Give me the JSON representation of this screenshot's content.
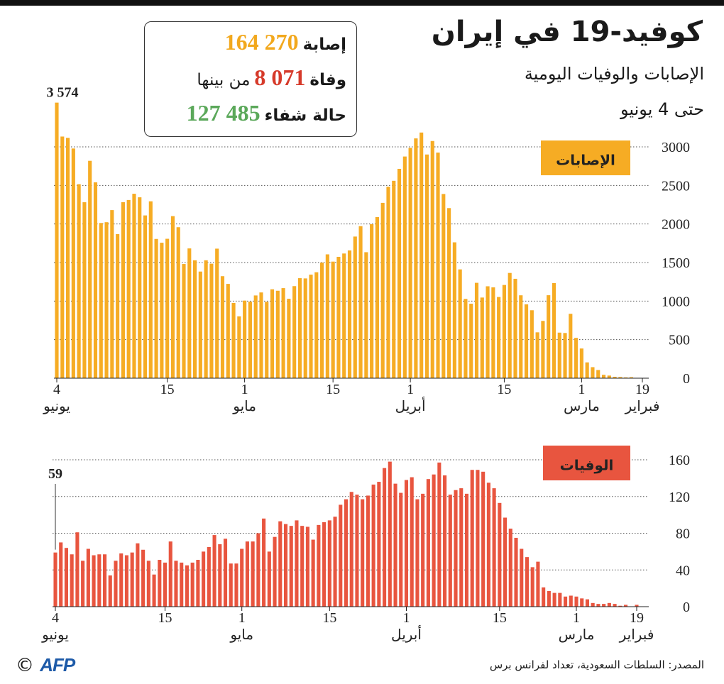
{
  "header": {
    "title": "كوفيد-19 في إيران",
    "subtitle": "الإصابات والوفيات اليومية",
    "date": "حتى 4 يونيو"
  },
  "stats": [
    {
      "label": "إصابة",
      "value": "164 270",
      "color": "#f2a81d"
    },
    {
      "label": "وفاة",
      "value": "8 071",
      "note": "من بينها",
      "color": "#d63a2a"
    },
    {
      "label": "حالة شفاء",
      "value": "127 485",
      "color": "#5ba85a"
    }
  ],
  "source": "المصدر: السلطات السعودية، تعداد لفرانس برس",
  "copyright": "©",
  "logo": "AFP",
  "chart_data": [
    {
      "type": "bar",
      "title": "الإصابات",
      "color": "#f6ac24",
      "grid": true,
      "ylim": [
        0,
        3600
      ],
      "yticks": [
        0,
        500,
        1000,
        1500,
        2000,
        2500,
        3000
      ],
      "categories": [
        "4\nيونيو",
        null,
        null,
        null,
        null,
        null,
        null,
        null,
        null,
        null,
        null,
        null,
        null,
        null,
        null,
        null,
        null,
        null,
        null,
        null,
        "15",
        null,
        null,
        null,
        null,
        null,
        null,
        null,
        null,
        null,
        null,
        null,
        null,
        null,
        "1\nمايو",
        null,
        null,
        null,
        null,
        null,
        null,
        null,
        null,
        null,
        null,
        null,
        null,
        null,
        null,
        null,
        "15",
        null,
        null,
        null,
        null,
        null,
        null,
        null,
        null,
        null,
        null,
        null,
        null,
        null,
        "1\nأبريل",
        null,
        null,
        null,
        null,
        null,
        null,
        null,
        null,
        null,
        null,
        null,
        null,
        null,
        null,
        null,
        null,
        "15",
        null,
        null,
        null,
        null,
        null,
        null,
        null,
        null,
        null,
        null,
        null,
        null,
        null,
        "1\nمارس",
        null,
        null,
        null,
        null,
        null,
        null,
        null,
        null,
        null,
        null,
        "19\nفبراير"
      ],
      "values": [
        3574,
        3134,
        3117,
        2979,
        2516,
        2282,
        2819,
        2540,
        2013,
        2023,
        2180,
        1869,
        2283,
        2311,
        2392,
        2346,
        2111,
        2294,
        1806,
        1757,
        1808,
        2102,
        1958,
        1481,
        1683,
        1529,
        1383,
        1529,
        1485,
        1680,
        1323,
        1223,
        976,
        802,
        1006,
        993,
        1073,
        1112,
        991,
        1153,
        1134,
        1168,
        1030,
        1194,
        1297,
        1294,
        1343,
        1374,
        1499,
        1606,
        1512,
        1574,
        1617,
        1657,
        1837,
        1972,
        1634,
        1997,
        2089,
        2274,
        2483,
        2560,
        2715,
        2875,
        2987,
        3110,
        3186,
        2901,
        3076,
        2926,
        2389,
        2206,
        1762,
        1411,
        1028,
        966,
        1237,
        1046,
        1192,
        1178,
        1053,
        1209,
        1365,
        1289,
        1075,
        958,
        881,
        595,
        743,
        1076,
        1234,
        591,
        586,
        835,
        523,
        385,
        205,
        143,
        106,
        44,
        34,
        18,
        15,
        10,
        13,
        3,
        2
      ],
      "value_labels": [
        "3 574",
        null,
        null,
        null,
        null,
        null,
        null,
        null,
        null,
        null,
        null,
        null,
        null,
        null,
        null,
        null,
        null,
        null,
        null,
        null,
        null,
        null,
        null,
        null,
        null,
        null,
        null,
        null,
        null,
        null,
        null,
        null,
        null,
        null,
        null,
        null,
        null,
        null,
        null,
        null,
        null,
        null,
        null,
        null,
        null,
        null,
        null,
        null,
        null,
        null,
        null,
        null,
        null,
        null,
        null,
        null,
        null,
        null,
        null,
        null,
        null,
        null,
        null,
        null,
        null,
        null,
        null,
        null,
        null,
        null,
        null,
        null,
        null,
        null,
        null,
        null,
        null,
        null,
        null,
        null,
        null,
        null,
        null,
        null,
        null,
        null,
        null,
        null,
        null,
        null,
        null,
        null,
        null,
        null,
        null,
        null,
        null,
        null,
        null,
        null,
        null,
        null,
        null,
        null,
        null,
        null,
        null
      ]
    },
    {
      "type": "bar",
      "title": "الوفيات",
      "color": "#e8553f",
      "grid": true,
      "ylim": [
        0,
        160
      ],
      "yticks": [
        0,
        40,
        80,
        120,
        160
      ],
      "categories": [
        "4\nيونيو",
        null,
        null,
        null,
        null,
        null,
        null,
        null,
        null,
        null,
        null,
        null,
        null,
        null,
        null,
        null,
        null,
        null,
        null,
        null,
        "15",
        null,
        null,
        null,
        null,
        null,
        null,
        null,
        null,
        null,
        null,
        null,
        null,
        null,
        "1\nمايو",
        null,
        null,
        null,
        null,
        null,
        null,
        null,
        null,
        null,
        null,
        null,
        null,
        null,
        null,
        null,
        "15",
        null,
        null,
        null,
        null,
        null,
        null,
        null,
        null,
        null,
        null,
        null,
        null,
        null,
        "1\nأبريل",
        null,
        null,
        null,
        null,
        null,
        null,
        null,
        null,
        null,
        null,
        null,
        null,
        null,
        null,
        null,
        null,
        "15",
        null,
        null,
        null,
        null,
        null,
        null,
        null,
        null,
        null,
        null,
        null,
        null,
        null,
        "1\nمارس",
        null,
        null,
        null,
        null,
        null,
        null,
        null,
        null,
        null,
        null,
        "19\nفبراير"
      ],
      "values": [
        59,
        70,
        64,
        57,
        81,
        50,
        63,
        56,
        57,
        57,
        34,
        50,
        58,
        56,
        59,
        69,
        62,
        50,
        35,
        51,
        48,
        71,
        50,
        48,
        45,
        48,
        51,
        60,
        65,
        78,
        68,
        74,
        47,
        47,
        63,
        71,
        71,
        80,
        96,
        60,
        76,
        93,
        90,
        88,
        94,
        88,
        87,
        73,
        89,
        92,
        94,
        98,
        111,
        117,
        125,
        122,
        117,
        121,
        133,
        136,
        151,
        158,
        134,
        124,
        138,
        141,
        117,
        123,
        139,
        144,
        157,
        143,
        122,
        127,
        129,
        123,
        149,
        149,
        147,
        135,
        129,
        113,
        97,
        85,
        75,
        63,
        54,
        43,
        49,
        21,
        17,
        15,
        15,
        11,
        12,
        11,
        9,
        8,
        4,
        3,
        3,
        4,
        3,
        1,
        2,
        0,
        2
      ]
    }
  ]
}
